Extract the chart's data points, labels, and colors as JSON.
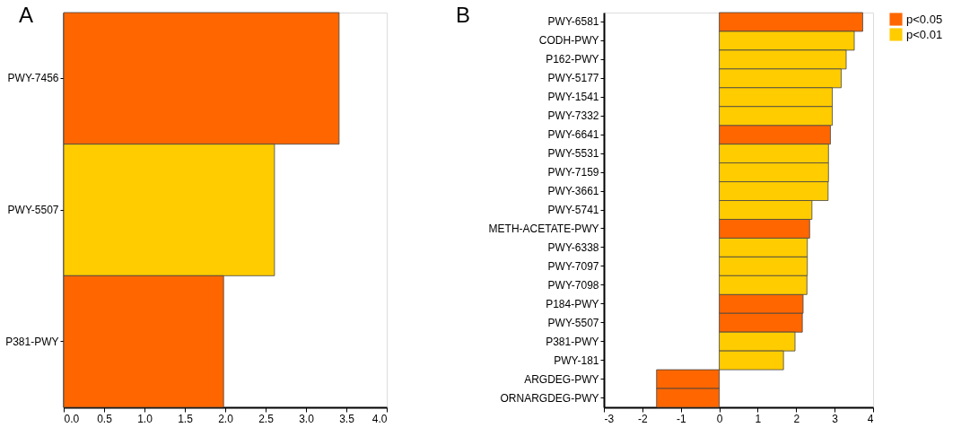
{
  "chart_data": [
    {
      "type": "bar",
      "orientation": "horizontal",
      "title": "A",
      "categories": [
        "PWY-7456",
        "PWY-5507",
        "P381-PWY"
      ],
      "values": [
        3.41,
        2.61,
        1.98
      ],
      "colors": [
        "#ff6600",
        "#ffcc00",
        "#ff6600"
      ],
      "xlim": [
        0,
        4
      ],
      "xticks": [
        {
          "value": 0,
          "label": "0.0"
        },
        0.5,
        {
          "value": 1,
          "label": "1.0"
        },
        1.5,
        {
          "value": 2,
          "label": "2.0"
        },
        2.5,
        {
          "value": 3,
          "label": "3.0"
        },
        3.5,
        {
          "value": 4,
          "label": "4.0"
        }
      ],
      "grid": false,
      "legend": false
    },
    {
      "type": "bar",
      "orientation": "horizontal",
      "title": "B",
      "categories": [
        "PWY-6581",
        "CODH-PWY",
        "P162-PWY",
        "PWY-5177",
        "PWY-1541",
        "PWY-7332",
        "PWY-6641",
        "PWY-5531",
        "PWY-7159",
        "PWY-3661",
        "PWY-5741",
        "METH-ACETATE-PWY",
        "PWY-6338",
        "PWY-7097",
        "PWY-7098",
        "P184-PWY",
        "PWY-5507",
        "P381-PWY",
        "PWY-181",
        "ARGDEG-PWY",
        "ORNARGDEG-PWY"
      ],
      "series": [
        {
          "name": "p<0.05",
          "color": "#ff6600",
          "values": [
            3.73,
            null,
            null,
            null,
            null,
            null,
            2.89,
            null,
            null,
            null,
            null,
            2.35,
            null,
            null,
            null,
            2.18,
            2.16,
            null,
            null,
            -1.63,
            -1.63
          ]
        },
        {
          "name": "p<0.01",
          "color": "#ffcc00",
          "values": [
            null,
            3.51,
            3.3,
            3.17,
            2.94,
            2.94,
            null,
            2.84,
            2.84,
            2.83,
            2.41,
            null,
            2.29,
            2.29,
            2.28,
            null,
            null,
            1.97,
            1.67,
            null,
            null
          ]
        }
      ],
      "xlim": [
        -3,
        4
      ],
      "xticks": [
        -3,
        -2,
        -1,
        0,
        1,
        2,
        3,
        4
      ],
      "grid": false,
      "legend": "top right"
    }
  ]
}
